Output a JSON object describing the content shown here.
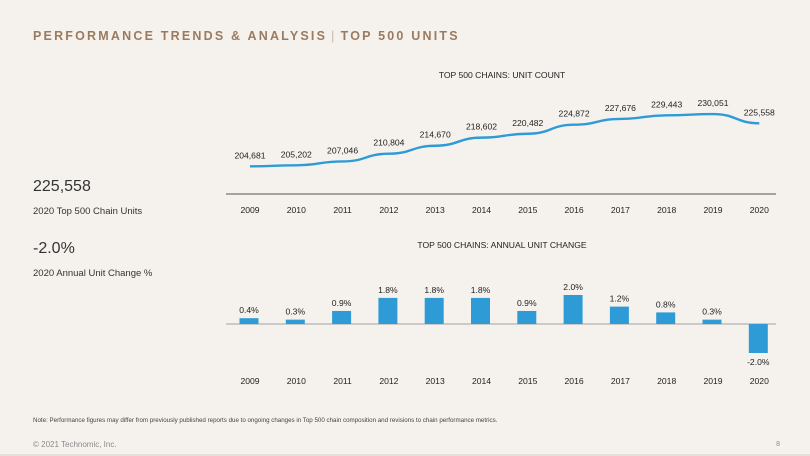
{
  "header": {
    "title_left": "PERFORMANCE TRENDS & ANALYSIS",
    "separator": "|",
    "title_right": "TOP 500 UNITS"
  },
  "kpis": [
    {
      "value": "225,558",
      "label": "2020 Top 500 Chain Units"
    },
    {
      "value": "-2.0%",
      "label": "2020 Annual Unit Change %"
    }
  ],
  "colors": {
    "accent": "#2e9bd6",
    "header": "#9a7b5f",
    "background": "#f5f2ee"
  },
  "chart_data": [
    {
      "type": "line",
      "title": "TOP 500 CHAINS: UNIT COUNT",
      "categories": [
        "2009",
        "2010",
        "2011",
        "2012",
        "2013",
        "2014",
        "2015",
        "2016",
        "2017",
        "2018",
        "2019",
        "2020"
      ],
      "values": [
        204681,
        205202,
        207046,
        210804,
        214670,
        218602,
        220482,
        224872,
        227676,
        229443,
        230051,
        225558
      ],
      "labels": [
        "204,681",
        "205,202",
        "207,046",
        "210,804",
        "214,670",
        "218,602",
        "220,482",
        "224,872",
        "227,676",
        "229,443",
        "230,051",
        "225,558"
      ],
      "ylim": [
        200000,
        232000
      ],
      "grid": false,
      "legend": false
    },
    {
      "type": "bar",
      "title": "TOP 500 CHAINS: ANNUAL UNIT CHANGE",
      "categories": [
        "2009",
        "2010",
        "2011",
        "2012",
        "2013",
        "2014",
        "2015",
        "2016",
        "2017",
        "2018",
        "2019",
        "2020"
      ],
      "values": [
        0.4,
        0.3,
        0.9,
        1.8,
        1.8,
        1.8,
        0.9,
        2.0,
        1.2,
        0.8,
        0.3,
        -2.0
      ],
      "labels": [
        "0.4%",
        "0.3%",
        "0.9%",
        "1.8%",
        "1.8%",
        "1.8%",
        "0.9%",
        "2.0%",
        "1.2%",
        "0.8%",
        "0.3%",
        "-2.0%"
      ],
      "ylim": [
        -2.0,
        2.0
      ],
      "grid": false,
      "legend": false
    }
  ],
  "note": "Note: Performance figures may differ from previously published reports due to ongoing changes in Top 500 chain composition and revisions to chain performance metrics.",
  "footer": {
    "copyright": "© 2021 Technomic, Inc.",
    "page_number": "8"
  }
}
